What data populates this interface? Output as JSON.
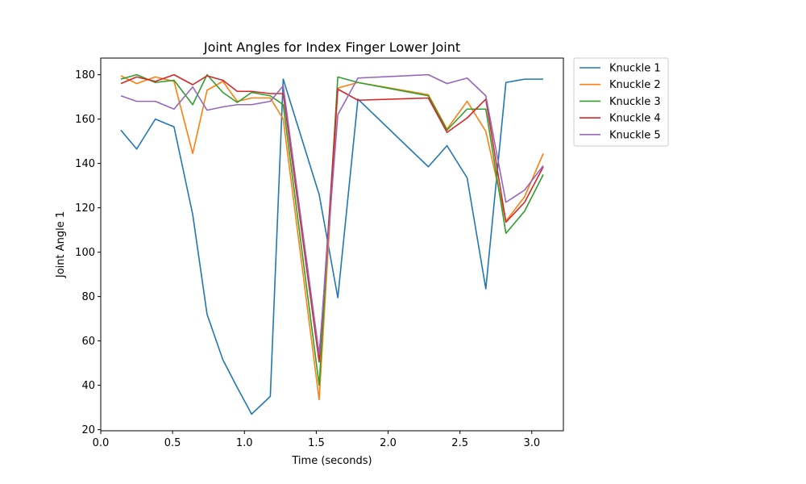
{
  "chart_data": {
    "type": "line",
    "title": "Joint Angles for Index Finger Lower Joint",
    "xlabel": "Time (seconds)",
    "ylabel": "Joint Angle 1",
    "xlim": [
      0.0,
      3.22
    ],
    "ylim": [
      19.5,
      187.5
    ],
    "xticks": [
      "0.0",
      "0.5",
      "1.0",
      "1.5",
      "2.0",
      "2.5",
      "3.0"
    ],
    "yticks": [
      "20",
      "40",
      "60",
      "80",
      "100",
      "120",
      "140",
      "160",
      "180"
    ],
    "grid": false,
    "legend_position": "outside-top-right",
    "series": [
      {
        "name": "Knuckle 1",
        "color": "#1f77b4",
        "x": [
          0.14,
          0.25,
          0.38,
          0.51,
          0.64,
          0.74,
          0.85,
          0.95,
          1.05,
          1.18,
          1.27,
          1.52,
          1.65,
          1.79,
          2.28,
          2.41,
          2.55,
          2.68,
          2.82,
          2.95,
          3.08
        ],
        "y": [
          155,
          146.5,
          160,
          156.5,
          117,
          72,
          51.5,
          39,
          27,
          35,
          178,
          126,
          79.5,
          169,
          138.5,
          148,
          133.5,
          83.5,
          176.5,
          178,
          178
        ]
      },
      {
        "name": "Knuckle 2",
        "color": "#ff7f0e",
        "x": [
          0.14,
          0.25,
          0.38,
          0.51,
          0.64,
          0.74,
          0.85,
          0.95,
          1.05,
          1.18,
          1.27,
          1.52,
          1.65,
          1.79,
          2.28,
          2.41,
          2.55,
          2.68,
          2.82,
          2.95,
          3.08
        ],
        "y": [
          179.5,
          176,
          179,
          177,
          144.5,
          173,
          177,
          168,
          169.5,
          169.5,
          160,
          33.5,
          174,
          176.5,
          171,
          155.5,
          168,
          154.5,
          114,
          125,
          144.5
        ]
      },
      {
        "name": "Knuckle 3",
        "color": "#2ca02c",
        "x": [
          0.14,
          0.25,
          0.38,
          0.51,
          0.64,
          0.74,
          0.85,
          0.95,
          1.05,
          1.18,
          1.27,
          1.52,
          1.65,
          1.79,
          2.28,
          2.41,
          2.55,
          2.68,
          2.82,
          2.95,
          3.08
        ],
        "y": [
          178,
          180,
          176.5,
          177.5,
          166.5,
          180,
          172,
          167.5,
          172,
          170.5,
          166.5,
          40,
          179,
          176.5,
          170.5,
          155,
          164.5,
          164.5,
          108.5,
          118.5,
          135
        ]
      },
      {
        "name": "Knuckle 4",
        "color": "#d62728",
        "x": [
          0.14,
          0.25,
          0.38,
          0.51,
          0.64,
          0.74,
          0.85,
          0.95,
          1.05,
          1.18,
          1.27,
          1.52,
          1.65,
          1.79,
          2.28,
          2.41,
          2.55,
          2.68,
          2.82,
          2.95,
          3.08
        ],
        "y": [
          176,
          179,
          177,
          180,
          175.5,
          179.5,
          177.5,
          172.5,
          172.5,
          171.5,
          171.5,
          50.5,
          173.5,
          168.5,
          169.5,
          154,
          160.5,
          169,
          113.5,
          122.5,
          138.5
        ]
      },
      {
        "name": "Knuckle 5",
        "color": "#9467bd",
        "x": [
          0.14,
          0.25,
          0.38,
          0.51,
          0.64,
          0.74,
          0.85,
          0.95,
          1.05,
          1.18,
          1.27,
          1.52,
          1.65,
          1.79,
          2.28,
          2.41,
          2.55,
          2.68,
          2.82,
          2.95,
          3.08
        ],
        "y": [
          170.5,
          168,
          168,
          164.5,
          174.5,
          164,
          165.5,
          166.5,
          166.5,
          168,
          175,
          54,
          162,
          178.5,
          180,
          176,
          178.5,
          170.5,
          122.5,
          128,
          139
        ]
      }
    ]
  }
}
